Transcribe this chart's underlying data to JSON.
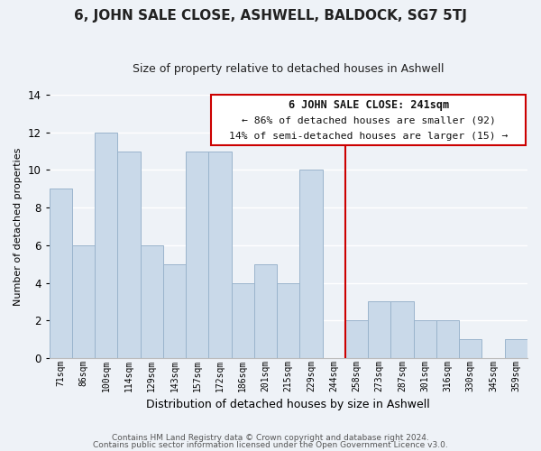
{
  "title": "6, JOHN SALE CLOSE, ASHWELL, BALDOCK, SG7 5TJ",
  "subtitle": "Size of property relative to detached houses in Ashwell",
  "xlabel": "Distribution of detached houses by size in Ashwell",
  "ylabel": "Number of detached properties",
  "bar_labels": [
    "71sqm",
    "86sqm",
    "100sqm",
    "114sqm",
    "129sqm",
    "143sqm",
    "157sqm",
    "172sqm",
    "186sqm",
    "201sqm",
    "215sqm",
    "229sqm",
    "244sqm",
    "258sqm",
    "273sqm",
    "287sqm",
    "301sqm",
    "316sqm",
    "330sqm",
    "345sqm",
    "359sqm"
  ],
  "bar_values": [
    9,
    6,
    12,
    11,
    6,
    5,
    11,
    11,
    4,
    5,
    4,
    10,
    0,
    2,
    3,
    3,
    2,
    2,
    1,
    0,
    1
  ],
  "bar_color": "#c9d9e9",
  "bar_edge_color": "#9ab4cc",
  "vline_color": "#cc0000",
  "vline_x": 12.5,
  "ylim": [
    0,
    14
  ],
  "yticks": [
    0,
    2,
    4,
    6,
    8,
    10,
    12,
    14
  ],
  "annotation_title": "6 JOHN SALE CLOSE: 241sqm",
  "annotation_line1": "← 86% of detached houses are smaller (92)",
  "annotation_line2": "14% of semi-detached houses are larger (15) →",
  "annotation_box_facecolor": "#ffffff",
  "annotation_box_edgecolor": "#cc0000",
  "footer_line1": "Contains HM Land Registry data © Crown copyright and database right 2024.",
  "footer_line2": "Contains public sector information licensed under the Open Government Licence v3.0.",
  "background_color": "#eef2f7",
  "plot_background": "#eef2f7",
  "grid_color": "#ffffff",
  "title_fontsize": 11,
  "subtitle_fontsize": 9
}
